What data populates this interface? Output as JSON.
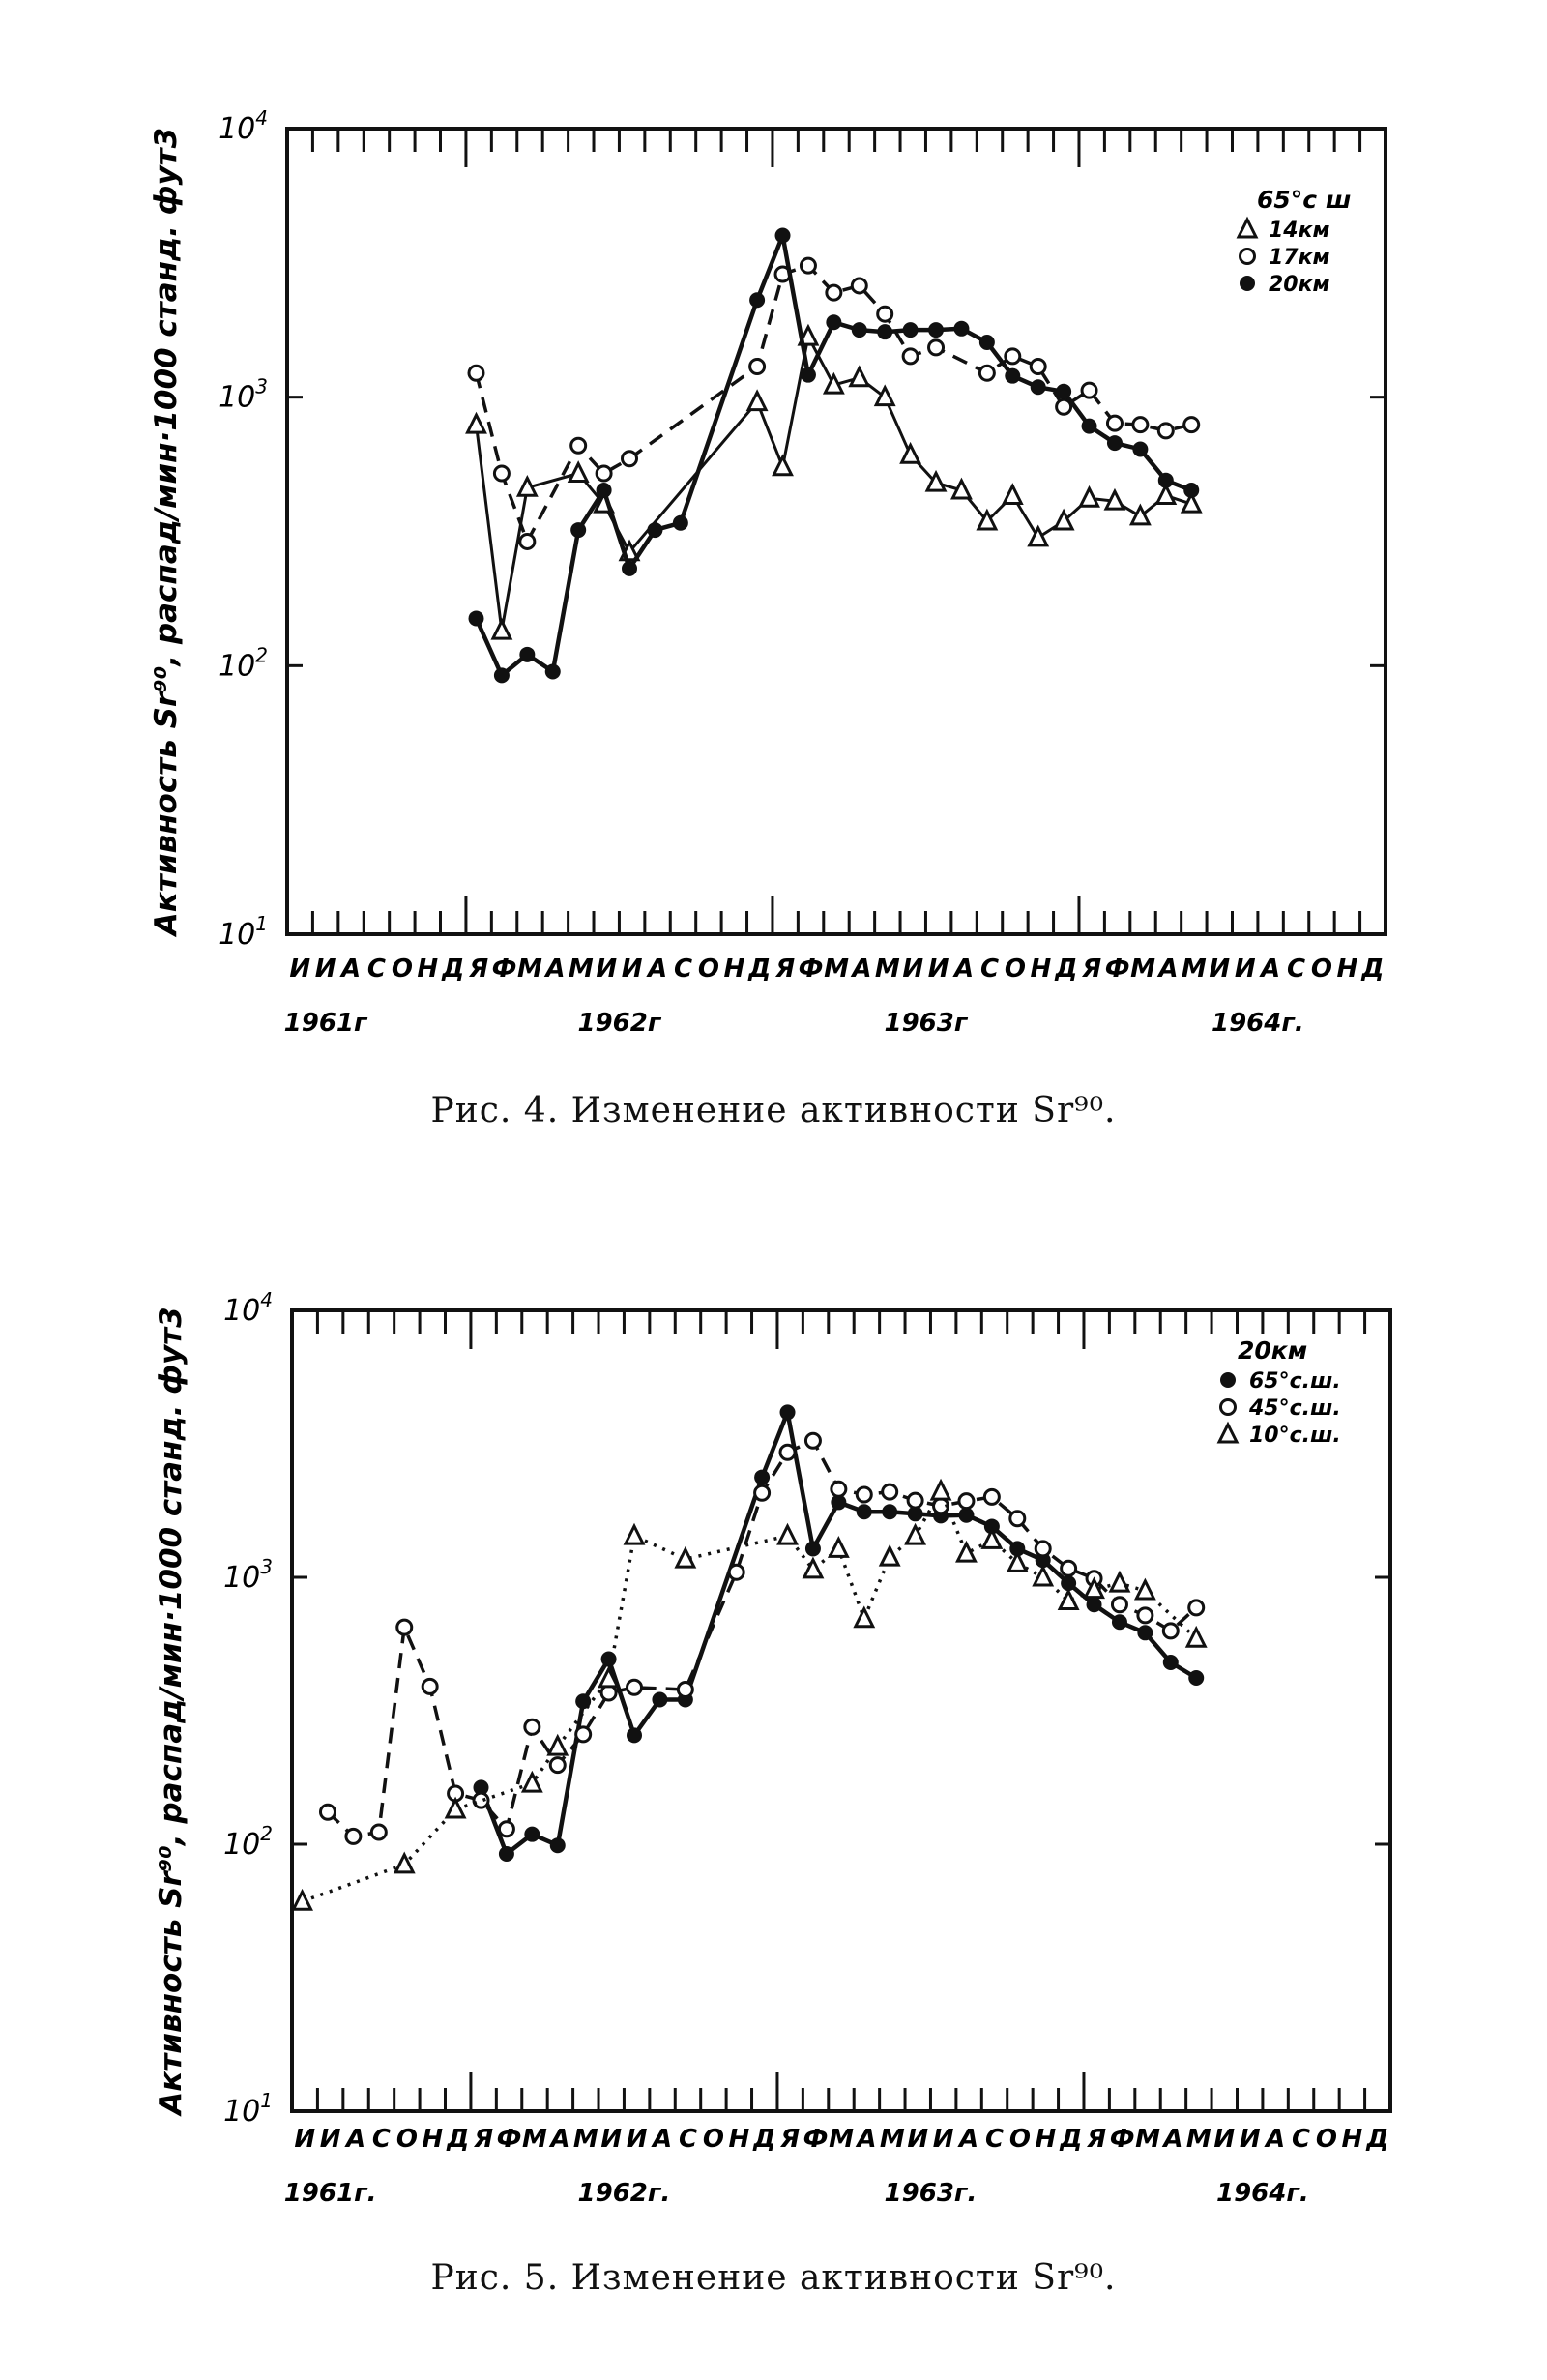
{
  "chart_data": [
    {
      "type": "line",
      "id": "fig4",
      "title": "Рис. 4. Изменение активности Sr⁹⁰.",
      "ylabel": "Активность Sr⁹⁰, распад/мин·1000 станд. фут3",
      "yscale": "log",
      "ylim": [
        10,
        10000
      ],
      "yticks": [
        {
          "base": "10",
          "exp": "1",
          "value": 10
        },
        {
          "base": "10",
          "exp": "2",
          "value": 100
        },
        {
          "base": "10",
          "exp": "3",
          "value": 1000
        },
        {
          "base": "10",
          "exp": "4",
          "value": 10000
        }
      ],
      "months": [
        "И",
        "И",
        "А",
        "С",
        "О",
        "Н",
        "Д",
        "Я",
        "Ф",
        "М",
        "А",
        "М",
        "И",
        "И",
        "А",
        "С",
        "О",
        "Н",
        "Д",
        "Я",
        "Ф",
        "М",
        "А",
        "М",
        "И",
        "И",
        "А",
        "С",
        "О",
        "Н",
        "Д",
        "Я",
        "Ф",
        "М",
        "А",
        "М",
        "И",
        "И",
        "А",
        "С",
        "О",
        "Н",
        "Д"
      ],
      "years": [
        {
          "label": "1961г",
          "month_index": 1.5
        },
        {
          "label": "1962г",
          "month_index": 13
        },
        {
          "label": "1963г",
          "month_index": 25
        },
        {
          "label": "1964г.",
          "month_index": 38
        }
      ],
      "legend_title": "65°с ш",
      "legend_placement": "top-right",
      "series": [
        {
          "name": "14км",
          "marker": "triangle",
          "line": "solid",
          "points": [
            [
              7,
              790
            ],
            [
              8,
              135
            ],
            [
              9,
              460
            ],
            [
              11,
              520
            ],
            [
              12,
              400
            ],
            [
              13,
              265
            ],
            [
              18,
              960
            ],
            [
              19,
              550
            ],
            [
              20,
              1680
            ],
            [
              21,
              1110
            ],
            [
              22,
              1180
            ],
            [
              23,
              1000
            ],
            [
              24,
              610
            ],
            [
              25,
              480
            ],
            [
              26,
              450
            ],
            [
              27,
              345
            ],
            [
              28,
              430
            ],
            [
              29,
              300
            ],
            [
              30,
              345
            ],
            [
              31,
              420
            ],
            [
              32,
              410
            ],
            [
              33,
              360
            ],
            [
              34,
              430
            ],
            [
              35,
              400
            ]
          ]
        },
        {
          "name": "17км",
          "marker": "open-circle",
          "line": "dashed",
          "points": [
            [
              7,
              1230
            ],
            [
              8,
              520
            ],
            [
              9,
              290
            ],
            [
              11,
              660
            ],
            [
              12,
              520
            ],
            [
              13,
              590
            ],
            [
              18,
              1300
            ],
            [
              19,
              2870
            ],
            [
              20,
              3090
            ],
            [
              21,
              2450
            ],
            [
              22,
              2600
            ],
            [
              23,
              2040
            ],
            [
              24,
              1420
            ],
            [
              25,
              1530
            ],
            [
              27,
              1230
            ],
            [
              28,
              1420
            ],
            [
              29,
              1300
            ],
            [
              30,
              920
            ],
            [
              31,
              1060
            ],
            [
              32,
              800
            ],
            [
              33,
              790
            ],
            [
              34,
              750
            ],
            [
              35,
              790
            ]
          ]
        },
        {
          "name": "20км",
          "marker": "filled-circle",
          "line": "solid-thick",
          "points": [
            [
              7,
              150
            ],
            [
              8,
              92
            ],
            [
              9,
              110
            ],
            [
              10,
              95
            ],
            [
              11,
              320
            ],
            [
              12,
              450
            ],
            [
              13,
              230
            ],
            [
              14,
              320
            ],
            [
              15,
              340
            ],
            [
              18,
              2300
            ],
            [
              19,
              4000
            ],
            [
              20,
              1210
            ],
            [
              21,
              1900
            ],
            [
              22,
              1780
            ],
            [
              23,
              1750
            ],
            [
              24,
              1780
            ],
            [
              25,
              1780
            ],
            [
              26,
              1800
            ],
            [
              27,
              1600
            ],
            [
              28,
              1200
            ],
            [
              29,
              1090
            ],
            [
              30,
              1050
            ],
            [
              31,
              780
            ],
            [
              32,
              675
            ],
            [
              33,
              640
            ],
            [
              34,
              490
            ],
            [
              35,
              450
            ]
          ]
        }
      ]
    },
    {
      "type": "line",
      "id": "fig5",
      "title": "Рис. 5. Изменение активности Sr⁹⁰.",
      "ylabel": "Активность Sr⁹⁰, распад/мин·1000 станд. фут3",
      "yscale": "log",
      "ylim": [
        10,
        10000
      ],
      "yticks": [
        {
          "base": "10",
          "exp": "1",
          "value": 10
        },
        {
          "base": "10",
          "exp": "2",
          "value": 100
        },
        {
          "base": "10",
          "exp": "3",
          "value": 1000
        },
        {
          "base": "10",
          "exp": "4",
          "value": 10000
        }
      ],
      "months": [
        "И",
        "И",
        "А",
        "С",
        "О",
        "Н",
        "Д",
        "Я",
        "Ф",
        "М",
        "А",
        "М",
        "И",
        "И",
        "А",
        "С",
        "О",
        "Н",
        "Д",
        "Я",
        "Ф",
        "М",
        "А",
        "М",
        "И",
        "И",
        "А",
        "С",
        "О",
        "Н",
        "Д",
        "Я",
        "Ф",
        "М",
        "А",
        "М",
        "И",
        "И",
        "А",
        "С",
        "О",
        "Н",
        "Д"
      ],
      "years": [
        {
          "label": "1961г.",
          "month_index": 1.5
        },
        {
          "label": "1962г.",
          "month_index": 13
        },
        {
          "label": "1963г.",
          "month_index": 25
        },
        {
          "label": "1964г.",
          "month_index": 38
        }
      ],
      "legend_title": "20км",
      "legend_placement": "top-right",
      "series": [
        {
          "name": "65°с.ш.",
          "marker": "filled-circle",
          "line": "solid-thick",
          "points": [
            [
              7,
              163
            ],
            [
              8,
              92
            ],
            [
              9,
              109
            ],
            [
              10,
              99
            ],
            [
              11,
              343
            ],
            [
              12,
              494
            ],
            [
              13,
              256
            ],
            [
              14,
              348
            ],
            [
              15,
              348
            ],
            [
              18,
              2370
            ],
            [
              19,
              4150
            ],
            [
              20,
              1280
            ],
            [
              21,
              1910
            ],
            [
              22,
              1760
            ],
            [
              23,
              1760
            ],
            [
              24,
              1730
            ],
            [
              25,
              1700
            ],
            [
              26,
              1710
            ],
            [
              27,
              1550
            ],
            [
              28,
              1280
            ],
            [
              29,
              1160
            ],
            [
              30,
              950
            ],
            [
              31,
              790
            ],
            [
              32,
              680
            ],
            [
              33,
              620
            ],
            [
              34,
              480
            ],
            [
              35,
              420
            ]
          ]
        },
        {
          "name": "45°с.ш.",
          "marker": "open-circle",
          "line": "dashed",
          "points": [
            [
              1,
              132
            ],
            [
              2,
              107
            ],
            [
              3,
              111
            ],
            [
              4,
              650
            ],
            [
              5,
              390
            ],
            [
              6,
              155
            ],
            [
              7,
              146
            ],
            [
              8,
              114
            ],
            [
              9,
              275
            ],
            [
              10,
              198
            ],
            [
              11,
              258
            ],
            [
              12,
              369
            ],
            [
              13,
              387
            ],
            [
              15,
              380
            ],
            [
              17,
              1045
            ],
            [
              18,
              2070
            ],
            [
              19,
              2940
            ],
            [
              20,
              3250
            ],
            [
              21,
              2140
            ],
            [
              22,
              2040
            ],
            [
              23,
              2090
            ],
            [
              24,
              1940
            ],
            [
              25,
              1850
            ],
            [
              26,
              1930
            ],
            [
              27,
              2000
            ],
            [
              28,
              1660
            ],
            [
              29,
              1280
            ],
            [
              30,
              1080
            ],
            [
              31,
              990
            ],
            [
              32,
              790
            ],
            [
              33,
              720
            ],
            [
              34,
              630
            ],
            [
              35,
              770
            ]
          ]
        },
        {
          "name": "10°с.ш.",
          "marker": "triangle",
          "line": "dotted",
          "points": [
            [
              0,
              61
            ],
            [
              4,
              84
            ],
            [
              6,
              135
            ],
            [
              9,
              169
            ],
            [
              10,
              232
            ],
            [
              12,
              417
            ],
            [
              13,
              1430
            ],
            [
              15,
              1170
            ],
            [
              19,
              1430
            ],
            [
              20,
              1070
            ],
            [
              21,
              1280
            ],
            [
              22,
              700
            ],
            [
              23,
              1190
            ],
            [
              24,
              1430
            ],
            [
              25,
              2100
            ],
            [
              26,
              1230
            ],
            [
              27,
              1380
            ],
            [
              28,
              1130
            ],
            [
              29,
              1000
            ],
            [
              30,
              815
            ],
            [
              31,
              900
            ],
            [
              32,
              950
            ],
            [
              33,
              890
            ],
            [
              35,
              590
            ]
          ]
        }
      ]
    }
  ]
}
